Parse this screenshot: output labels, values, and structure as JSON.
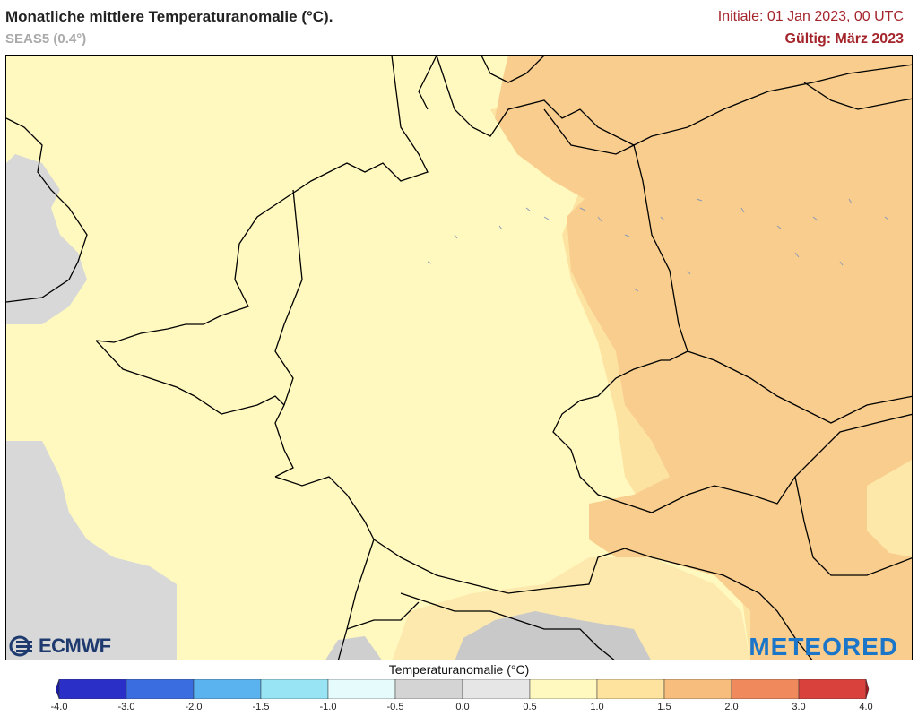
{
  "header": {
    "title": "Monatliche mittlere Temperaturanomalie (°C).",
    "model": "SEAS5 (0.4°)",
    "initial": "Initiale: 01 Jan 2023, 00 UTC",
    "valid": "Gültig: März 2023"
  },
  "logos": {
    "ecmwf": "ECMWF",
    "meteored": "METEORED"
  },
  "legend": {
    "title": "Temperaturanomalie (°C)",
    "ticks": [
      "-4.0",
      "-3.0",
      "-2.0",
      "-1.5",
      "-1.0",
      "-0.5",
      "0.0",
      "0.5",
      "1.0",
      "1.5",
      "2.0",
      "3.0",
      "4.0"
    ],
    "colors": [
      "#2a30c7",
      "#3a6ee0",
      "#5ab2ef",
      "#98e4f5",
      "#e6fbfc",
      "#d4d4d4",
      "#e6e6e6",
      "#fff9bf",
      "#fde39d",
      "#f6bd7c",
      "#f08a5c",
      "#d9413c"
    ],
    "under_color": "#1a1aa8",
    "over_color": "#a8171b"
  },
  "map": {
    "region": "Mitteleuropa",
    "colors": {
      "sea_grey": "#d6d6d6",
      "land_low": "#fff9bf",
      "land_mid": "#fde8a8",
      "land_high": "#f8cf8f",
      "alps_grey": "#c8c8c8"
    }
  }
}
